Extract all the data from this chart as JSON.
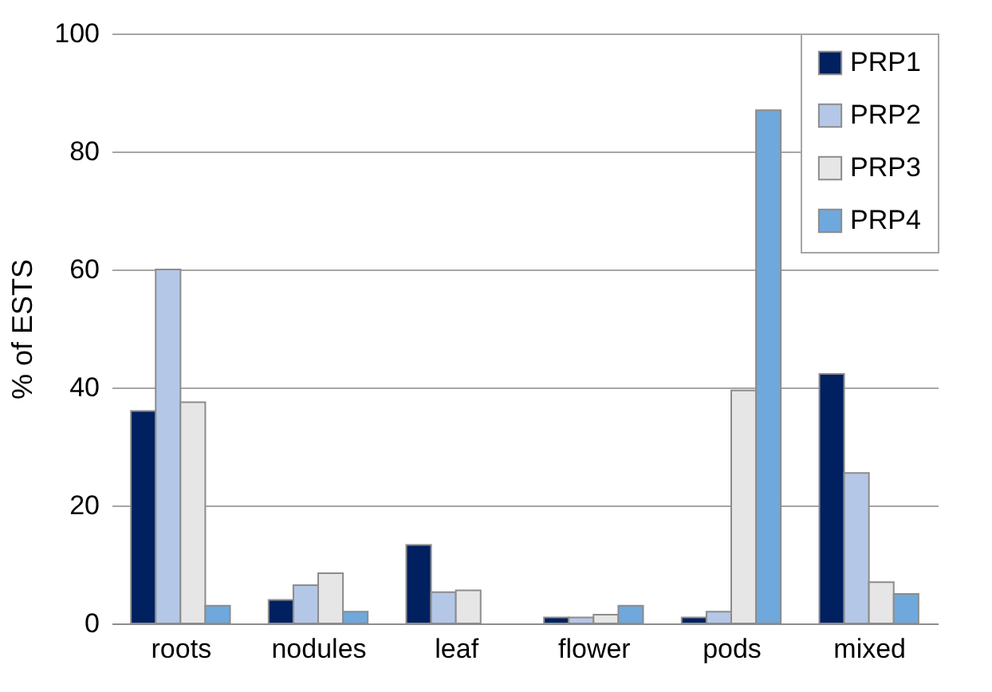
{
  "chart_data": {
    "type": "bar",
    "ylabel": "% of ESTS",
    "categories": [
      "roots",
      "nodules",
      "leaf",
      "flower",
      "pods",
      "mixed"
    ],
    "series": [
      {
        "name": "PRP1",
        "color": "#002060",
        "values": [
          36,
          4,
          13.3,
          1,
          1,
          42.3
        ]
      },
      {
        "name": "PRP2",
        "color": "#b4c7e7",
        "values": [
          60,
          6.5,
          5.3,
          1,
          2,
          25.5
        ]
      },
      {
        "name": "PRP3",
        "color": "#e6e6e6",
        "values": [
          37.5,
          8.5,
          5.6,
          1.5,
          39.5,
          7
        ]
      },
      {
        "name": "PRP4",
        "color": "#6fa8dc",
        "values": [
          3,
          2,
          null,
          3,
          87,
          5
        ]
      }
    ],
    "ylim": [
      0,
      100
    ],
    "yticks": [
      0,
      20,
      40,
      60,
      80,
      100
    ],
    "grid": "y",
    "legend": "top right"
  }
}
